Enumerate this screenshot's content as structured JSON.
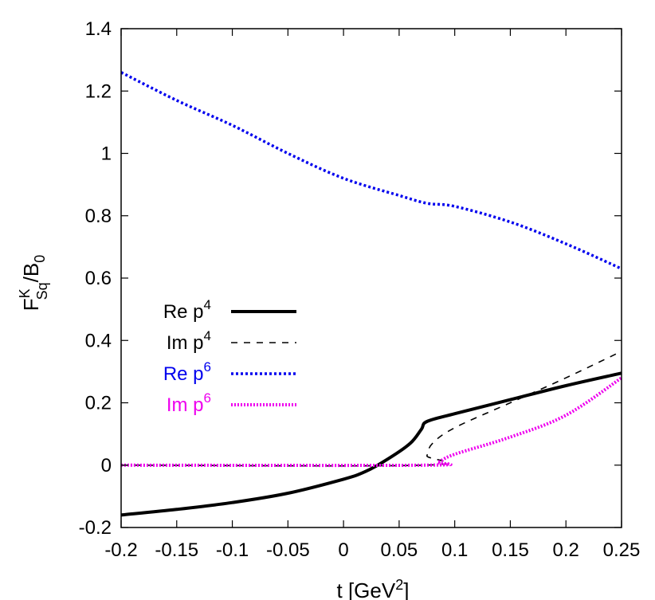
{
  "chart_data": {
    "type": "line",
    "title": "",
    "xlabel": {
      "prefix": "t    [GeV",
      "sup": "2",
      "suffix": "]"
    },
    "ylabel": {
      "base": "F",
      "sup": "K",
      "sub": "Sq",
      "rest": "/B",
      "rest_sub": "0"
    },
    "xlim": [
      -0.2,
      0.25
    ],
    "ylim": [
      -0.2,
      1.4
    ],
    "x_ticks": [
      -0.2,
      -0.15,
      -0.1,
      -0.05,
      0,
      0.05,
      0.1,
      0.15,
      0.2,
      0.25
    ],
    "x_tick_labels": [
      "-0.2",
      "-0.15",
      "-0.1",
      "-0.05",
      "0",
      "0.05",
      "0.1",
      "0.15",
      "0.2",
      "0.25"
    ],
    "y_ticks": [
      -0.2,
      0,
      0.2,
      0.4,
      0.6,
      0.8,
      1.0,
      1.2,
      1.4
    ],
    "y_tick_labels": [
      "-0.2",
      "0",
      "0.2",
      "0.4",
      "0.6",
      "0.8",
      "1",
      "1.2",
      "1.4"
    ],
    "grid": false,
    "legend_position": "left",
    "series": [
      {
        "key": "re4",
        "name": {
          "text": "Re p",
          "sup": "4"
        },
        "color": "#000000",
        "style": "solid-thick",
        "points": [
          [
            -0.2,
            -0.16
          ],
          [
            -0.15,
            -0.142
          ],
          [
            -0.1,
            -0.12
          ],
          [
            -0.05,
            -0.09
          ],
          [
            0,
            -0.045
          ],
          [
            0.02,
            -0.02
          ],
          [
            0.04,
            0.02
          ],
          [
            0.06,
            0.07
          ],
          [
            0.07,
            0.115
          ],
          [
            0.075,
            0.14
          ],
          [
            0.1,
            0.165
          ],
          [
            0.15,
            0.21
          ],
          [
            0.2,
            0.255
          ],
          [
            0.25,
            0.295
          ]
        ]
      },
      {
        "key": "im4",
        "name": {
          "text": "Im p",
          "sup": "4"
        },
        "color": "#000000",
        "style": "dashed",
        "points": [
          [
            -0.2,
            0
          ],
          [
            0.073,
            0
          ],
          [
            0.075,
            0.03
          ],
          [
            0.08,
            0.07
          ],
          [
            0.1,
            0.12
          ],
          [
            0.15,
            0.2
          ],
          [
            0.2,
            0.28
          ],
          [
            0.25,
            0.365
          ]
        ]
      },
      {
        "key": "re6",
        "name": {
          "text": "Re p",
          "sup": "6"
        },
        "color": "#0000ee",
        "style": "dotted",
        "points": [
          [
            -0.2,
            1.26
          ],
          [
            -0.15,
            1.17
          ],
          [
            -0.1,
            1.09
          ],
          [
            -0.05,
            1.0
          ],
          [
            0,
            0.92
          ],
          [
            0.05,
            0.865
          ],
          [
            0.075,
            0.84
          ],
          [
            0.1,
            0.83
          ],
          [
            0.15,
            0.78
          ],
          [
            0.2,
            0.71
          ],
          [
            0.25,
            0.63
          ]
        ]
      },
      {
        "key": "im6",
        "name": {
          "text": "Im p",
          "sup": "6"
        },
        "color": "#ee00ee",
        "style": "dotted-thick",
        "points": [
          [
            -0.2,
            0
          ],
          [
            0.073,
            0
          ],
          [
            0.085,
            0.01
          ],
          [
            0.1,
            0.035
          ],
          [
            0.15,
            0.09
          ],
          [
            0.2,
            0.16
          ],
          [
            0.25,
            0.28
          ]
        ]
      }
    ]
  }
}
